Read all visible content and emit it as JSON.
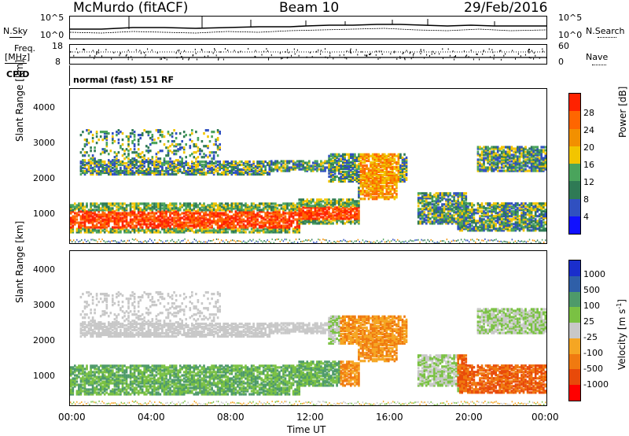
{
  "header": {
    "station": "McMurdo (fitACF)",
    "beam": "Beam 10",
    "date": "29/Feb/2016"
  },
  "top_panels": {
    "nsky_label": "N.Sky",
    "nsearch_label": "N.Search",
    "noise_ticks": [
      "10^5",
      "10^0"
    ],
    "noise_ticks_right": [
      "10^5",
      "10^0"
    ],
    "freq_label": "Freq.",
    "freq_unit": "[MHz]",
    "freq_ticks": [
      "18",
      "8"
    ],
    "nave_label": "Nave",
    "nave_ticks": [
      "60",
      "0"
    ],
    "cpid_label": "CPID",
    "cpid_text": "normal (fast) 151 RF"
  },
  "chart_data": [
    {
      "type": "heatmap",
      "name": "power",
      "ylabel": "Slant Range [km]",
      "xlabel": "Time UT",
      "x_ticks": [
        "00:00",
        "04:00",
        "08:00",
        "12:00",
        "16:00",
        "20:00",
        "00:00"
      ],
      "y_ticks": [
        1000,
        2000,
        3000,
        4000
      ],
      "ylim": [
        200,
        4600
      ],
      "xlim_hours": [
        0,
        24
      ],
      "colorbar": {
        "label": "Power [dB]",
        "ticks": [
          4,
          8,
          12,
          16,
          20,
          24,
          28
        ],
        "colors": [
          "#1010ff",
          "#3050c0",
          "#2f7a55",
          "#4aa45c",
          "#f2c500",
          "#f29000",
          "#ff6600",
          "#ff2200"
        ]
      }
    },
    {
      "type": "heatmap",
      "name": "velocity",
      "ylabel": "Slant Range [km]",
      "xlabel": "Time UT",
      "x_ticks": [
        "00:00",
        "04:00",
        "08:00",
        "12:00",
        "16:00",
        "20:00",
        "00:00"
      ],
      "y_ticks": [
        1000,
        2000,
        3000,
        4000
      ],
      "ylim": [
        200,
        4600
      ],
      "xlim_hours": [
        0,
        24
      ],
      "colorbar": {
        "label": "Velocity [m s",
        "label_sup": "-1",
        "label_end": "]",
        "ticks": [
          1000,
          500,
          100,
          25,
          -25,
          -100,
          -500,
          -1000
        ],
        "colors": [
          "#1a2ecc",
          "#2f5fa8",
          "#4e9a6a",
          "#7ac143",
          "#c8c8c8",
          "#f5a623",
          "#f07a10",
          "#e84a0a",
          "#ff0000"
        ]
      }
    }
  ],
  "x_axis_title": "Time UT"
}
